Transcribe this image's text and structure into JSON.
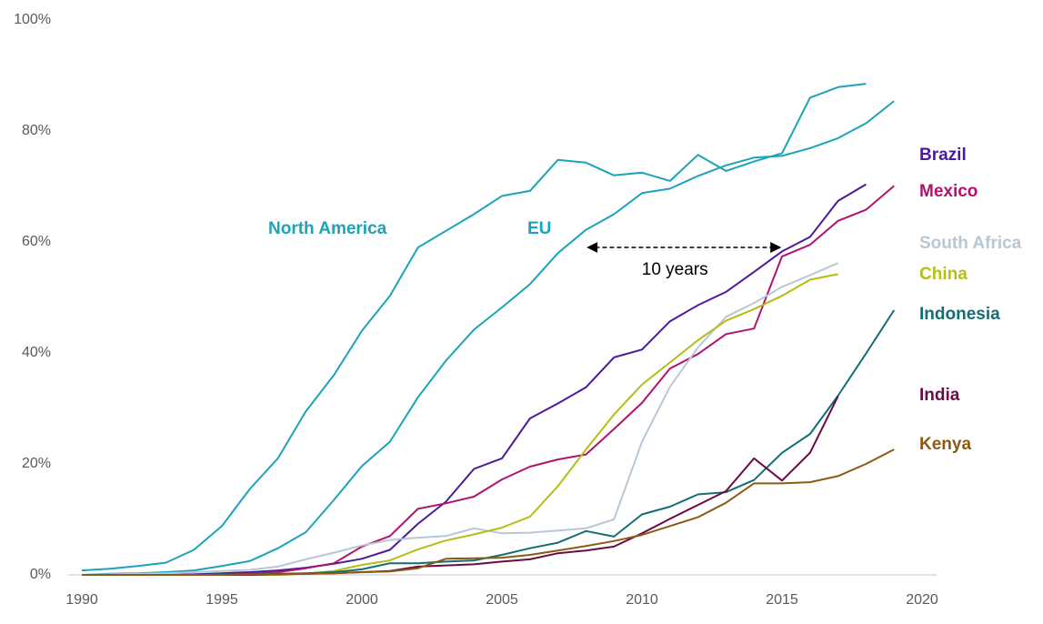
{
  "chart_data": {
    "type": "line",
    "x": [
      1990,
      1991,
      1992,
      1993,
      1994,
      1995,
      1996,
      1997,
      1998,
      1999,
      2000,
      2001,
      2002,
      2003,
      2004,
      2005,
      2006,
      2007,
      2008,
      2009,
      2010,
      2011,
      2012,
      2013,
      2014,
      2015,
      2016,
      2017,
      2018,
      2019
    ],
    "xlim": [
      1990,
      2020
    ],
    "xticks": [
      1990,
      1995,
      2000,
      2005,
      2010,
      2015,
      2020
    ],
    "ylim": [
      0,
      100
    ],
    "yticks": [
      {
        "value": 0,
        "label": "0%"
      },
      {
        "value": 20,
        "label": "20%"
      },
      {
        "value": 40,
        "label": "40%"
      },
      {
        "value": 60,
        "label": "60%"
      },
      {
        "value": 80,
        "label": "80%"
      },
      {
        "value": 100,
        "label": "100%"
      }
    ],
    "grid": false,
    "series": [
      {
        "name": "North America",
        "color": "#1ba3b9",
        "values": [
          0.8,
          1.1,
          1.6,
          2.2,
          4.5,
          8.8,
          15.5,
          21,
          29.5,
          36,
          44,
          50.3,
          59,
          62,
          65,
          68.3,
          69.2,
          74.8,
          74.3,
          72,
          72.5,
          71,
          75.7,
          72.8,
          74.5,
          76,
          86,
          87.9,
          88.5,
          null
        ]
      },
      {
        "name": "EU",
        "color": "#1ba3b9",
        "values": [
          0,
          0.2,
          0.3,
          0.5,
          0.8,
          1.6,
          2.5,
          4.8,
          7.7,
          13.5,
          19.6,
          24,
          32,
          38.6,
          44.2,
          48.2,
          52.4,
          58,
          62.2,
          65,
          68.8,
          69.6,
          71.9,
          73.8,
          75.2,
          75.5,
          76.9,
          78.7,
          81.4,
          85.4
        ]
      },
      {
        "name": "Brazil",
        "color": "#4b1a9c",
        "values": [
          0,
          0,
          0,
          0,
          0.1,
          0.3,
          0.5,
          0.8,
          1.3,
          2,
          2.9,
          4.5,
          9.2,
          13.2,
          19.1,
          21,
          28.2,
          30.9,
          33.8,
          39.2,
          40.6,
          45.7,
          48.6,
          51,
          54.6,
          58.3,
          60.9,
          67.4,
          70.4,
          null
        ]
      },
      {
        "name": "Mexico",
        "color": "#b0126e",
        "values": [
          0,
          0,
          0,
          0,
          0,
          0.1,
          0.2,
          0.5,
          1.2,
          2.1,
          5.1,
          7,
          11.9,
          12.9,
          14.1,
          17.2,
          19.5,
          20.8,
          21.7,
          26.3,
          31,
          37.2,
          39.8,
          43.4,
          44.4,
          57.4,
          59.5,
          63.8,
          65.8,
          70.1
        ]
      },
      {
        "name": "South Africa",
        "color": "#b8c7d6",
        "values": [
          0,
          0.1,
          0.2,
          0.3,
          0.5,
          0.7,
          0.9,
          1.5,
          2.8,
          4,
          5.3,
          6.3,
          6.7,
          7,
          8.4,
          7.5,
          7.6,
          8,
          8.4,
          10,
          24,
          33.9,
          41,
          46.5,
          49,
          51.9,
          54,
          56.2,
          null,
          null
        ]
      },
      {
        "name": "China",
        "color": "#b6bd14",
        "values": [
          0,
          0,
          0,
          0,
          0,
          0,
          0,
          0,
          0.2,
          0.7,
          1.8,
          2.6,
          4.6,
          6.2,
          7.3,
          8.5,
          10.5,
          16,
          22.6,
          28.9,
          34.3,
          38.3,
          42.3,
          45.8,
          47.9,
          50.3,
          53.2,
          54.2,
          null,
          null
        ]
      },
      {
        "name": "Indonesia",
        "color": "#136d75",
        "values": [
          0,
          0,
          0,
          0,
          0,
          0.1,
          0.1,
          0.2,
          0.3,
          0.5,
          1,
          2.1,
          2.1,
          2.4,
          2.6,
          3.6,
          4.8,
          5.8,
          7.9,
          6.9,
          10.9,
          12.3,
          14.5,
          14.9,
          17.1,
          22,
          25.4,
          32.3,
          39.9,
          47.7
        ]
      },
      {
        "name": "India",
        "color": "#6b0a45",
        "values": [
          0,
          0,
          0,
          0,
          0,
          0,
          0,
          0.1,
          0.2,
          0.3,
          0.5,
          0.7,
          1.5,
          1.7,
          1.9,
          2.4,
          2.8,
          3.9,
          4.4,
          5.1,
          7.5,
          10.1,
          12.6,
          15.1,
          21,
          17,
          22,
          32.2,
          null,
          null
        ]
      },
      {
        "name": "Kenya",
        "color": "#8b5a12",
        "values": [
          0,
          0,
          0,
          0,
          0,
          0,
          0.1,
          0.1,
          0.2,
          0.3,
          0.5,
          0.6,
          1.2,
          2.9,
          3,
          3.1,
          3.6,
          4.4,
          5.2,
          6.1,
          7.2,
          8.8,
          10.4,
          13,
          16.5,
          16.5,
          16.7,
          17.8,
          20,
          22.6
        ]
      }
    ],
    "annotation": {
      "text": "10 years",
      "x": [
        2008,
        2015
      ],
      "y": 60
    }
  }
}
